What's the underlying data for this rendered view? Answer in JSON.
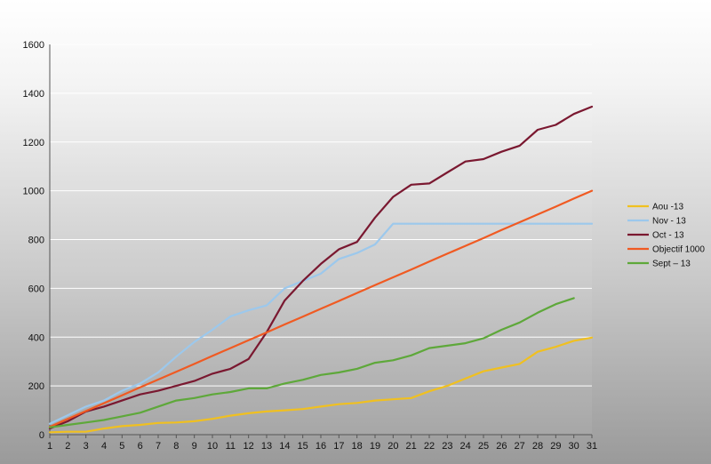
{
  "chart_data": {
    "type": "line",
    "title": "",
    "xlabel": "",
    "ylabel": "",
    "x": [
      1,
      2,
      3,
      4,
      5,
      6,
      7,
      8,
      9,
      10,
      11,
      12,
      13,
      14,
      15,
      16,
      17,
      18,
      19,
      20,
      21,
      22,
      23,
      24,
      25,
      26,
      27,
      28,
      29,
      30,
      31
    ],
    "xticks": [
      "1",
      "2",
      "3",
      "4",
      "5",
      "6",
      "7",
      "8",
      "9",
      "10",
      "11",
      "12",
      "13",
      "14",
      "15",
      "16",
      "17",
      "18",
      "19",
      "20",
      "21",
      "22",
      "23",
      "24",
      "25",
      "26",
      "27",
      "28",
      "29",
      "30",
      "31"
    ],
    "yticks": [
      "0",
      "200",
      "400",
      "600",
      "800",
      "1000",
      "1200",
      "1400",
      "1600"
    ],
    "ylim": [
      0,
      1600
    ],
    "grid": "horizontal",
    "legend_position": "right",
    "series": [
      {
        "name": "Aou -13",
        "color": "#f0c020",
        "values": [
          10,
          12,
          12,
          25,
          35,
          40,
          48,
          50,
          55,
          65,
          78,
          88,
          95,
          100,
          105,
          115,
          125,
          130,
          140,
          145,
          150,
          178,
          200,
          230,
          260,
          275,
          290,
          340,
          360,
          385,
          398
        ]
      },
      {
        "name": "Nov - 13",
        "color": "#9cc8ec",
        "values": [
          45,
          80,
          115,
          140,
          180,
          210,
          255,
          320,
          380,
          430,
          485,
          510,
          530,
          600,
          630,
          660,
          720,
          745,
          780,
          865,
          865,
          865,
          865,
          865,
          865,
          865,
          865,
          865,
          865,
          865,
          865
        ]
      },
      {
        "name": "Oct - 13",
        "color": "#7a1830",
        "values": [
          25,
          55,
          95,
          115,
          140,
          165,
          180,
          200,
          220,
          250,
          270,
          310,
          420,
          550,
          630,
          700,
          760,
          790,
          890,
          975,
          1025,
          1030,
          1075,
          1120,
          1130,
          1160,
          1185,
          1250,
          1270,
          1315,
          1345
        ]
      },
      {
        "name": "Objectif 1000",
        "color": "#f05a22",
        "values": [
          32,
          65,
          97,
          129,
          161,
          194,
          226,
          258,
          290,
          323,
          355,
          387,
          419,
          452,
          484,
          516,
          548,
          581,
          613,
          645,
          677,
          710,
          742,
          774,
          806,
          839,
          871,
          903,
          935,
          968,
          1000
        ]
      },
      {
        "name": "Sept – 13",
        "color": "#5ea83a",
        "values": [
          30,
          40,
          50,
          60,
          75,
          90,
          115,
          140,
          150,
          165,
          175,
          190,
          190,
          210,
          225,
          245,
          255,
          270,
          295,
          305,
          325,
          355,
          365,
          375,
          395,
          430,
          460,
          500,
          535,
          560,
          null
        ]
      }
    ]
  }
}
